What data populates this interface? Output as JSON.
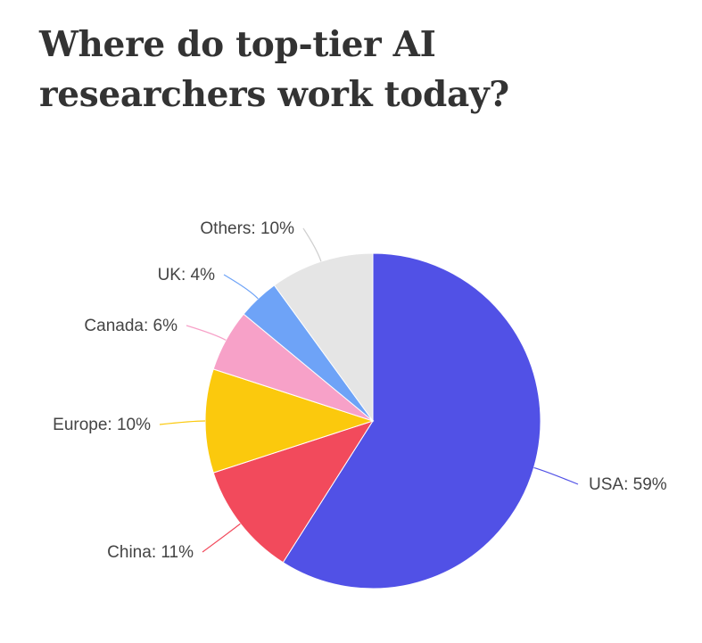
{
  "chart_data": {
    "type": "pie",
    "title": "Where do top-tier AI researchers work today?",
    "slices": [
      {
        "name": "USA",
        "value": 59,
        "color": "#5151e6",
        "label": "USA: 59%"
      },
      {
        "name": "China",
        "value": 11,
        "color": "#f24a5c",
        "label": "China: 11%"
      },
      {
        "name": "Europe",
        "value": 10,
        "color": "#fbc90d",
        "label": "Europe: 10%"
      },
      {
        "name": "Canada",
        "value": 6,
        "color": "#f7a1c8",
        "label": "Canada: 6%"
      },
      {
        "name": "UK",
        "value": 4,
        "color": "#6ea3f7",
        "label": "UK: 4%"
      },
      {
        "name": "Others",
        "value": 10,
        "color": "#e5e5e5",
        "label": "Others: 10%"
      }
    ],
    "start_angle_deg": 0,
    "direction": "clockwise",
    "legend": "none"
  }
}
